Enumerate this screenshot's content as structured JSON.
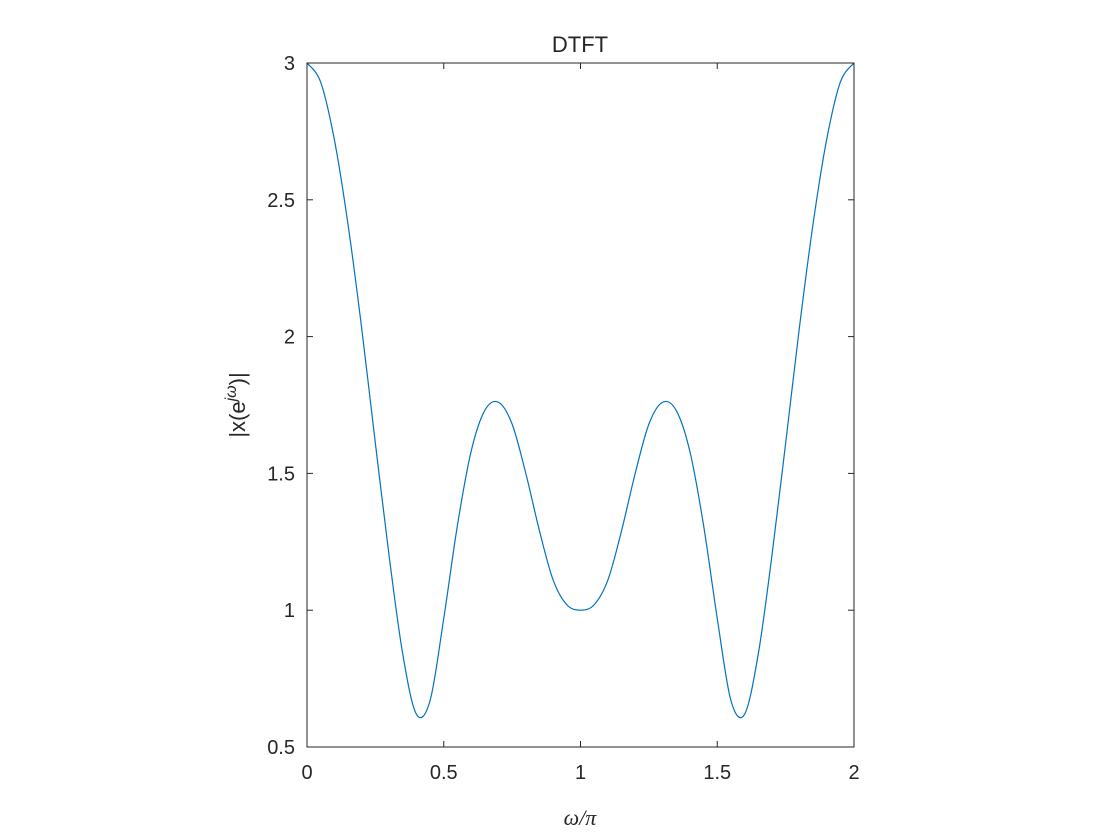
{
  "chart_data": {
    "type": "line",
    "title": "DTFT",
    "xlabel": "ω/π",
    "ylabel": {
      "prefix": "|x(e",
      "superscript": "jω",
      "suffix": ")|"
    },
    "xlim": [
      0,
      2
    ],
    "ylim": [
      0.5,
      3
    ],
    "xticks": [
      0,
      0.5,
      1,
      1.5,
      2
    ],
    "xtick_labels": [
      "0",
      "0.5",
      "1",
      "1.5",
      "2"
    ],
    "yticks": [
      0.5,
      1,
      1.5,
      2,
      2.5,
      3
    ],
    "ytick_labels": [
      "0.5",
      "1",
      "1.5",
      "2",
      "2.5",
      "3"
    ],
    "grid": false,
    "line_color": "#0072BD",
    "series": [
      {
        "x": [
          0.0,
          0.05,
          0.1,
          0.15,
          0.2,
          0.25,
          0.3,
          0.35,
          0.4,
          0.45,
          0.5,
          0.55,
          0.6,
          0.65,
          0.7,
          0.75,
          0.8,
          0.85,
          0.9,
          0.95,
          1.0,
          1.05,
          1.1,
          1.15,
          1.2,
          1.25,
          1.3,
          1.35,
          1.4,
          1.45,
          1.5,
          1.55,
          1.6,
          1.65,
          1.7,
          1.75,
          1.8,
          1.85,
          1.9,
          1.95,
          2.0
        ],
        "y": [
          3.0,
          2.93,
          2.72,
          2.41,
          2.03,
          1.61,
          1.2,
          0.84,
          0.62,
          0.67,
          0.97,
          1.31,
          1.58,
          1.73,
          1.76,
          1.68,
          1.5,
          1.29,
          1.11,
          1.02,
          1.0,
          1.02,
          1.11,
          1.29,
          1.5,
          1.68,
          1.76,
          1.73,
          1.58,
          1.31,
          0.97,
          0.67,
          0.62,
          0.84,
          1.2,
          1.61,
          2.03,
          2.41,
          2.72,
          2.93,
          3.0
        ]
      }
    ]
  }
}
